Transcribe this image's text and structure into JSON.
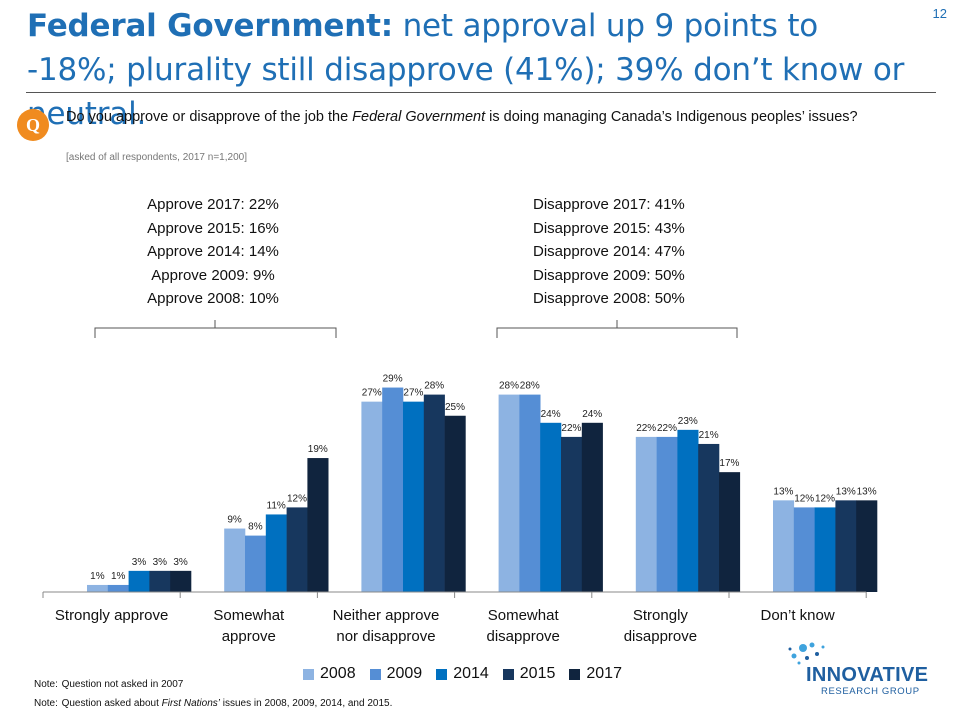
{
  "page_number": "12",
  "title": {
    "bold": "Federal Government:",
    "rest": " net approval up 9 points to -18%; plurality still disapprove (41%); 39% don’t know or neutral."
  },
  "question": {
    "badge": "Q",
    "text_before": "Do you approve or disapprove of the job the ",
    "text_italic": "Federal Government",
    "text_after": " is doing managing Canada’s Indigenous peoples’ issues?",
    "note": "[asked of all respondents, 2017 n=1,200]"
  },
  "summary_approve": [
    "Approve 2017: 22%",
    "Approve 2015: 16%",
    "Approve 2014: 14%",
    "Approve 2009: 9%",
    "Approve 2008: 10%"
  ],
  "summary_disapprove": [
    "Disapprove 2017: 41%",
    "Disapprove 2015: 43%",
    "Disapprove 2014: 47%",
    "Disapprove 2009: 50%",
    "Disapprove 2008: 50%"
  ],
  "chart_data": {
    "type": "bar",
    "categories": [
      [
        "Strongly approve"
      ],
      [
        "Somewhat",
        "approve"
      ],
      [
        "Neither approve",
        "nor disapprove"
      ],
      [
        "Somewhat",
        "disapprove"
      ],
      [
        "Strongly",
        "disapprove"
      ],
      [
        "Don’t know"
      ]
    ],
    "series": [
      {
        "name": "2008",
        "color": "#8db3e2",
        "values": [
          1,
          9,
          27,
          28,
          22,
          13
        ]
      },
      {
        "name": "2009",
        "color": "#558ed5",
        "values": [
          1,
          8,
          29,
          28,
          22,
          12
        ]
      },
      {
        "name": "2014",
        "color": "#0070c0",
        "values": [
          3,
          11,
          27,
          24,
          23,
          12
        ]
      },
      {
        "name": "2015",
        "color": "#17375e",
        "values": [
          3,
          12,
          28,
          22,
          21,
          13
        ]
      },
      {
        "name": "2017",
        "color": "#10243e",
        "values": [
          3,
          19,
          25,
          24,
          17,
          13
        ]
      }
    ],
    "value_suffix": "%",
    "ylim": [
      0,
      30
    ],
    "grid": false,
    "legend_position": "bottom"
  },
  "notes": [
    {
      "label": "Note:",
      "text_before": "Question not asked in 2007",
      "text_italic": "",
      "text_after": ""
    },
    {
      "label": "Note:",
      "text_before": "Question asked about ",
      "text_italic": "First Nations’",
      "text_after": " issues in 2008, 2009, 2014, and 2015."
    }
  ],
  "logo": {
    "name": "INNOVATIVE",
    "sub": "RESEARCH GROUP"
  }
}
